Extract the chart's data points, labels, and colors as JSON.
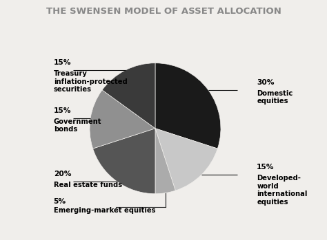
{
  "title": "THE SWENSEN MODEL OF ASSET ALLOCATION",
  "title_fontsize": 9.5,
  "title_color": "#888888",
  "background_color": "#f0eeeb",
  "slices": [
    {
      "label": "Domestic\nequities",
      "pct": "30%",
      "value": 30,
      "color": "#1a1a1a"
    },
    {
      "label": "Developed-\nworld\ninternational\nequities",
      "pct": "15%",
      "value": 15,
      "color": "#c8c8c8"
    },
    {
      "label": "Emerging-market equities",
      "pct": "5%",
      "value": 5,
      "color": "#ababab"
    },
    {
      "label": "Real estate funds",
      "pct": "20%",
      "value": 20,
      "color": "#555555"
    },
    {
      "label": "Government\nbonds",
      "pct": "15%",
      "value": 15,
      "color": "#909090"
    },
    {
      "label": "Treasury\ninflation-protected\nsecurities",
      "pct": "15%",
      "value": 15,
      "color": "#3a3a3a"
    }
  ],
  "start_angle": 90,
  "label_fontsize": 7.2,
  "line_color": "#111111"
}
